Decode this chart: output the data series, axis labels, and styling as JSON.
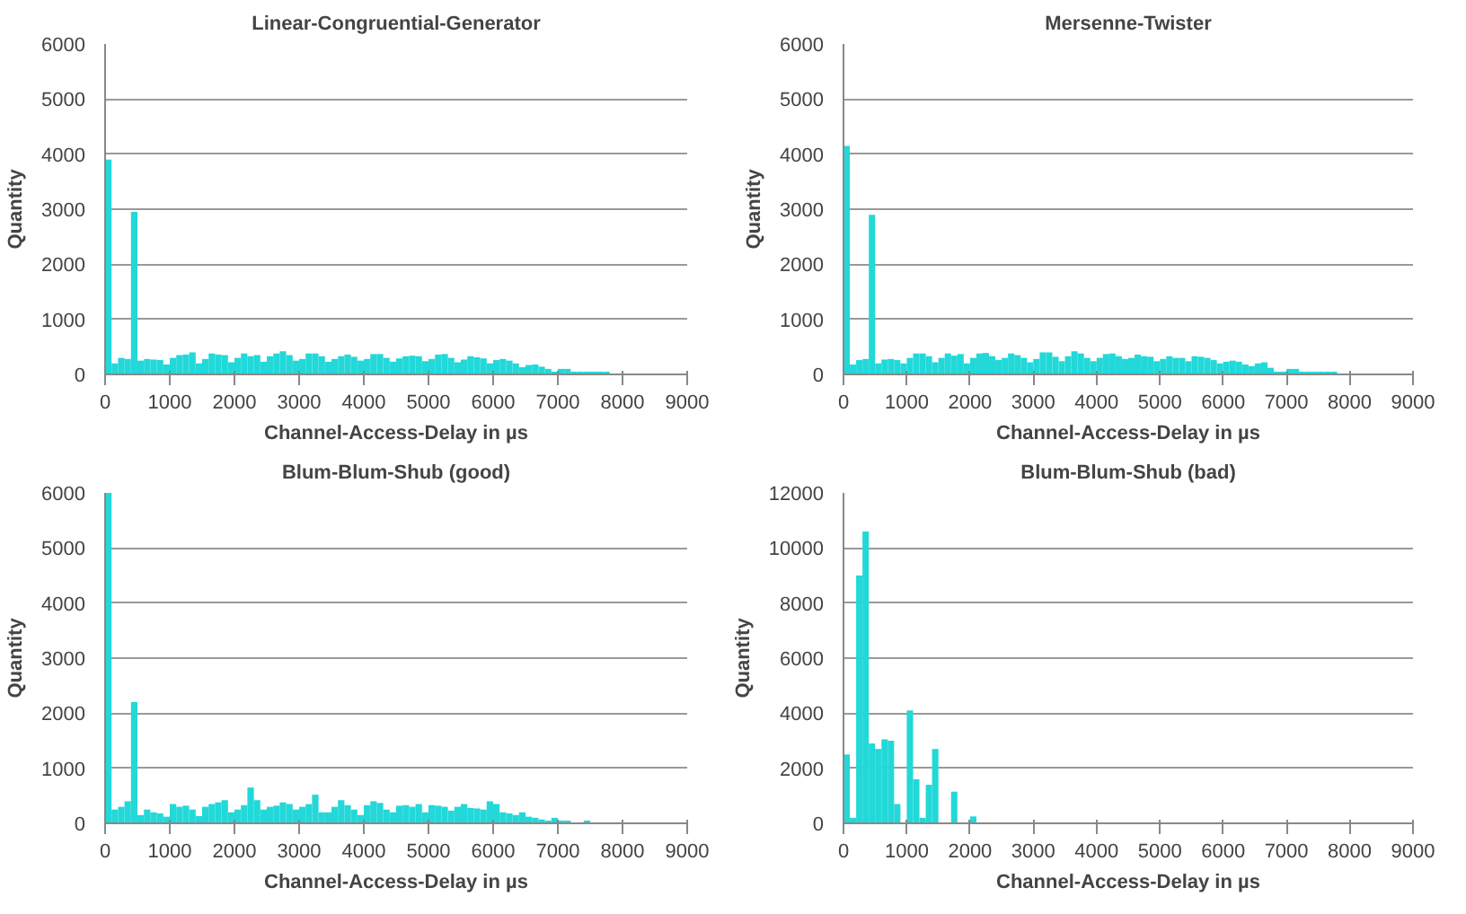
{
  "chart_data": [
    {
      "type": "histogram",
      "title": "Linear-Congruential-Generator",
      "xlabel": "Channel-Access-Delay in µs",
      "ylabel": "Quantity",
      "color": "#22d8d8",
      "grid": "y",
      "xlim": [
        0,
        9000
      ],
      "xticks": [
        0,
        1000,
        2000,
        3000,
        4000,
        5000,
        6000,
        7000,
        8000,
        9000
      ],
      "ylim": [
        0,
        6000
      ],
      "yticks": [
        0,
        1000,
        2000,
        3000,
        4000,
        5000,
        6000
      ],
      "bins": [
        0,
        100,
        200,
        300,
        400,
        500,
        600,
        700,
        800,
        900,
        1000,
        1100,
        1200,
        1300,
        1400,
        1500,
        1600,
        1700,
        1800,
        1900,
        2000,
        2100,
        2200,
        2300,
        2400,
        2500,
        2600,
        2700,
        2800,
        2900,
        3000,
        3100,
        3200,
        3300,
        3400,
        3500,
        3600,
        3700,
        3800,
        3900,
        4000,
        4100,
        4200,
        4300,
        4400,
        4500,
        4600,
        4700,
        4800,
        4900,
        5000,
        5100,
        5200,
        5300,
        5400,
        5500,
        5600,
        5700,
        5800,
        5900,
        6000,
        6100,
        6200,
        6300,
        6400,
        6500,
        6600,
        6700,
        6800,
        6900,
        7000,
        7100,
        7200,
        7300,
        7400,
        7500,
        7600,
        7700,
        7800,
        7900,
        8000,
        8100,
        8200,
        8300,
        8400,
        8500,
        8600,
        8700,
        8800,
        8900,
        9000
      ],
      "values": [
        3900,
        200,
        300,
        280,
        2950,
        250,
        280,
        270,
        260,
        180,
        300,
        350,
        360,
        400,
        200,
        280,
        380,
        360,
        350,
        220,
        300,
        380,
        330,
        350,
        230,
        330,
        380,
        420,
        350,
        250,
        280,
        380,
        380,
        330,
        230,
        280,
        330,
        360,
        320,
        250,
        280,
        370,
        370,
        300,
        230,
        290,
        330,
        340,
        330,
        240,
        280,
        360,
        370,
        300,
        220,
        270,
        330,
        310,
        290,
        200,
        260,
        280,
        250,
        200,
        130,
        170,
        180,
        140,
        100,
        50,
        100,
        100,
        50,
        50,
        50,
        50,
        50,
        50,
        0,
        0,
        0,
        0,
        0,
        0,
        0,
        0,
        0,
        0,
        0,
        0
      ]
    },
    {
      "type": "histogram",
      "title": "Mersenne-Twister",
      "xlabel": "Channel-Access-Delay in µs",
      "ylabel": "Quantity",
      "color": "#22d8d8",
      "grid": "y",
      "xlim": [
        0,
        9000
      ],
      "xticks": [
        0,
        1000,
        2000,
        3000,
        4000,
        5000,
        6000,
        7000,
        8000,
        9000
      ],
      "ylim": [
        0,
        6000
      ],
      "yticks": [
        0,
        1000,
        2000,
        3000,
        4000,
        5000,
        6000
      ],
      "bins": [
        0,
        100,
        200,
        300,
        400,
        500,
        600,
        700,
        800,
        900,
        1000,
        1100,
        1200,
        1300,
        1400,
        1500,
        1600,
        1700,
        1800,
        1900,
        2000,
        2100,
        2200,
        2300,
        2400,
        2500,
        2600,
        2700,
        2800,
        2900,
        3000,
        3100,
        3200,
        3300,
        3400,
        3500,
        3600,
        3700,
        3800,
        3900,
        4000,
        4100,
        4200,
        4300,
        4400,
        4500,
        4600,
        4700,
        4800,
        4900,
        5000,
        5100,
        5200,
        5300,
        5400,
        5500,
        5600,
        5700,
        5800,
        5900,
        6000,
        6100,
        6200,
        6300,
        6400,
        6500,
        6600,
        6700,
        6800,
        6900,
        7000,
        7100,
        7200,
        7300,
        7400,
        7500,
        7600,
        7700,
        7800,
        7900,
        8000,
        8100,
        8200,
        8300,
        8400,
        8500,
        8600,
        8700,
        8800,
        8900,
        9000
      ],
      "values": [
        4150,
        180,
        260,
        280,
        2900,
        200,
        270,
        280,
        260,
        200,
        300,
        380,
        380,
        330,
        220,
        300,
        380,
        340,
        370,
        200,
        300,
        380,
        390,
        330,
        260,
        300,
        380,
        350,
        300,
        220,
        280,
        400,
        400,
        320,
        240,
        330,
        420,
        380,
        300,
        240,
        300,
        370,
        380,
        330,
        280,
        300,
        360,
        330,
        320,
        240,
        280,
        330,
        300,
        300,
        240,
        330,
        320,
        300,
        260,
        200,
        230,
        250,
        230,
        180,
        150,
        200,
        220,
        120,
        50,
        50,
        100,
        100,
        50,
        50,
        50,
        50,
        50,
        50,
        0,
        0,
        0,
        0,
        0,
        0,
        0,
        0,
        0,
        0,
        0,
        0
      ]
    },
    {
      "type": "histogram",
      "title": "Blum-Blum-Shub (good)",
      "xlabel": "Channel-Access-Delay in µs",
      "ylabel": "Quantity",
      "color": "#22d8d8",
      "grid": "y",
      "xlim": [
        0,
        9000
      ],
      "xticks": [
        0,
        1000,
        2000,
        3000,
        4000,
        5000,
        6000,
        7000,
        8000,
        9000
      ],
      "ylim": [
        0,
        6000
      ],
      "yticks": [
        0,
        1000,
        2000,
        3000,
        4000,
        5000,
        6000
      ],
      "bins": [
        0,
        100,
        200,
        300,
        400,
        500,
        600,
        700,
        800,
        900,
        1000,
        1100,
        1200,
        1300,
        1400,
        1500,
        1600,
        1700,
        1800,
        1900,
        2000,
        2100,
        2200,
        2300,
        2400,
        2500,
        2600,
        2700,
        2800,
        2900,
        3000,
        3100,
        3200,
        3300,
        3400,
        3500,
        3600,
        3700,
        3800,
        3900,
        4000,
        4100,
        4200,
        4300,
        4400,
        4500,
        4600,
        4700,
        4800,
        4900,
        5000,
        5100,
        5200,
        5300,
        5400,
        5500,
        5600,
        5700,
        5800,
        5900,
        6000,
        6100,
        6200,
        6300,
        6400,
        6500,
        6600,
        6700,
        6800,
        6900,
        7000,
        7100,
        7200,
        7300,
        7400,
        7500,
        7600,
        7700,
        7800,
        7900,
        8000,
        8100,
        8200,
        8300,
        8400,
        8500,
        8600,
        8700,
        8800,
        8900,
        9000
      ],
      "values": [
        6000,
        250,
        300,
        400,
        2200,
        150,
        250,
        200,
        180,
        120,
        350,
        300,
        320,
        250,
        130,
        300,
        350,
        380,
        420,
        200,
        250,
        330,
        650,
        420,
        250,
        300,
        320,
        380,
        350,
        250,
        300,
        350,
        520,
        200,
        200,
        300,
        420,
        330,
        250,
        150,
        330,
        400,
        370,
        250,
        200,
        320,
        330,
        300,
        350,
        200,
        330,
        320,
        300,
        230,
        300,
        350,
        280,
        270,
        250,
        400,
        350,
        200,
        180,
        150,
        200,
        120,
        100,
        70,
        50,
        100,
        50,
        50,
        0,
        0,
        50,
        0,
        0,
        0,
        0,
        0,
        0,
        0,
        0,
        0,
        0,
        0,
        0,
        0,
        0,
        0
      ]
    },
    {
      "type": "histogram",
      "title": "Blum-Blum-Shub (bad)",
      "xlabel": "Channel-Access-Delay in µs",
      "ylabel": "Quantity",
      "color": "#22d8d8",
      "grid": "y",
      "xlim": [
        0,
        9000
      ],
      "xticks": [
        0,
        1000,
        2000,
        3000,
        4000,
        5000,
        6000,
        7000,
        8000,
        9000
      ],
      "ylim": [
        0,
        12000
      ],
      "yticks": [
        0,
        2000,
        4000,
        6000,
        8000,
        10000,
        12000
      ],
      "bins": [
        0,
        100,
        200,
        300,
        400,
        500,
        600,
        700,
        800,
        900,
        1000,
        1100,
        1200,
        1300,
        1400,
        1500,
        1600,
        1700,
        1800,
        1900,
        2000,
        2100,
        2200,
        2300,
        2400,
        2500,
        2600,
        2700,
        2800,
        2900,
        3000,
        3100,
        3200,
        3300,
        3400,
        3500,
        3600,
        3700,
        3800,
        3900,
        4000,
        4100,
        4200,
        4300,
        4400,
        4500,
        4600,
        4700,
        4800,
        4900,
        5000,
        5100,
        5200,
        5300,
        5400,
        5500,
        5600,
        5700,
        5800,
        5900,
        6000,
        6100,
        6200,
        6300,
        6400,
        6500,
        6600,
        6700,
        6800,
        6900,
        7000,
        7100,
        7200,
        7300,
        7400,
        7500,
        7600,
        7700,
        7800,
        7900,
        8000,
        8100,
        8200,
        8300,
        8400,
        8500,
        8600,
        8700,
        8800,
        8900,
        9000
      ],
      "values": [
        2500,
        200,
        9000,
        10600,
        2900,
        2700,
        3050,
        3000,
        700,
        0,
        4100,
        1600,
        200,
        1400,
        2700,
        0,
        0,
        1150,
        0,
        0,
        250,
        0,
        0,
        0,
        0,
        0,
        0,
        0,
        0,
        0,
        0,
        0,
        0,
        0,
        0,
        0,
        0,
        0,
        0,
        0,
        0,
        0,
        0,
        0,
        0,
        0,
        0,
        0,
        0,
        0,
        0,
        0,
        0,
        0,
        0,
        0,
        0,
        0,
        0,
        0,
        0,
        0,
        0,
        0,
        0,
        0,
        0,
        0,
        0,
        0,
        0,
        0,
        0,
        0,
        0,
        0,
        0,
        0,
        0,
        0,
        0,
        0,
        0,
        0,
        0,
        0,
        0,
        0,
        0,
        0
      ]
    }
  ]
}
